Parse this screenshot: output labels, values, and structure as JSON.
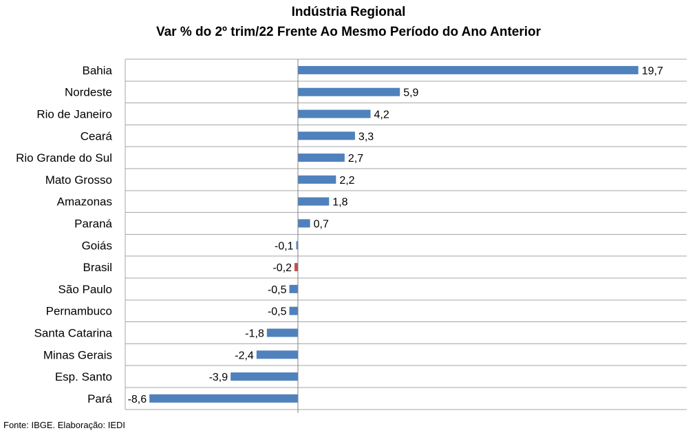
{
  "chart_data": {
    "type": "bar",
    "orientation": "horizontal",
    "title": "Indústria Regional",
    "subtitle": "Var % do 2º trim/22 Frente Ao Mesmo Período do Ano Anterior",
    "xlim": [
      -10,
      22.5
    ],
    "categories": [
      "Bahia",
      "Nordeste",
      "Rio de Janeiro",
      "Ceará",
      "Rio Grande do Sul",
      "Mato Grosso",
      "Amazonas",
      "Paraná",
      "Goiás",
      "Brasil",
      "São Paulo",
      "Pernambuco",
      "Santa Catarina",
      "Minas Gerais",
      "Esp. Santo",
      "Pará"
    ],
    "values": [
      19.7,
      5.9,
      4.2,
      3.3,
      2.7,
      2.2,
      1.8,
      0.7,
      -0.1,
      -0.2,
      -0.5,
      -0.5,
      -1.8,
      -2.4,
      -3.9,
      -8.6
    ],
    "value_labels": [
      "19,7",
      "5,9",
      "4,2",
      "3,3",
      "2,7",
      "2,2",
      "1,8",
      "0,7",
      "-0,1",
      "-0,2",
      "-0,5",
      "-0,5",
      "-1,8",
      "-2,4",
      "-3,9",
      "-8,6"
    ],
    "highlight_category": "Brasil",
    "colors": {
      "bar": "#4F81BD",
      "highlight": "#C0504D",
      "grid": "#A6A6A6",
      "axis": "#808080"
    },
    "grid": true
  },
  "footer": {
    "source": "Fonte: IBGE. Elaboração: IEDI"
  }
}
